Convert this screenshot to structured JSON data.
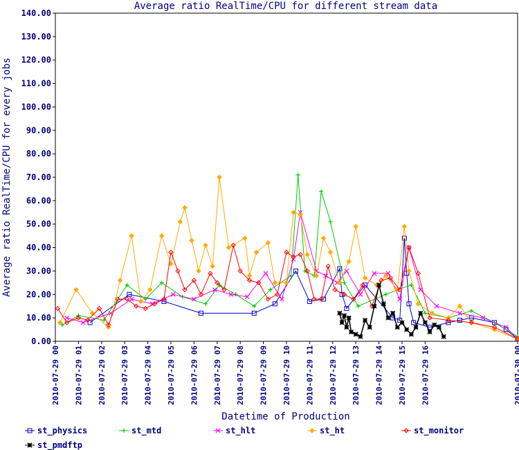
{
  "chart_data": {
    "type": "line",
    "title": "Average ratio RealTime/CPU for different stream data",
    "xlabel": "Datetime of Production",
    "ylabel": "Average ratio RealTime/CPU for every jobs",
    "ylim": [
      0,
      140
    ],
    "yticks": [
      "0.00",
      "10.00",
      "20.00",
      "30.00",
      "40.00",
      "50.00",
      "60.00",
      "70.00",
      "80.00",
      "90.00",
      "100.00",
      "110.00",
      "120.00",
      "130.00",
      "140.00"
    ],
    "xticks": [
      "2010-07-29 00",
      "2010-07-29 01",
      "2010-07-29 02",
      "2010-07-29 03",
      "2010-07-29 04",
      "2010-07-29 05",
      "2010-07-29 06",
      "2010-07-29 07",
      "2010-07-29 08",
      "2010-07-29 09",
      "2010-07-29 10",
      "2010-07-29 11",
      "2010-07-29 12",
      "2010-07-29 13",
      "2010-07-29 14",
      "2010-07-29 15",
      "2010-07-29 16",
      "2010-07-30 00"
    ],
    "x_unit": "hours since 2010-07-29 00",
    "grid": false,
    "legend_position": "bottom",
    "series": [
      {
        "name": "st_physics",
        "color": "#0000cc",
        "marker": "square",
        "x": [
          1.5,
          3.2,
          4.7,
          6.3,
          8.6,
          9.5,
          10.4,
          11.0,
          11.6,
          12.3,
          12.4,
          12.6,
          13.4,
          14.6,
          14.9,
          15.1,
          15.2,
          15.3,
          15.5,
          16.2,
          17.0,
          17.5,
          18.0,
          19.0,
          19.5,
          20.0
        ],
        "y": [
          8,
          20,
          17,
          12,
          12,
          16,
          30,
          17,
          18,
          31,
          20,
          14,
          24,
          10,
          9,
          44,
          29,
          16,
          8,
          6,
          8,
          9,
          10,
          8,
          5,
          1
        ]
      },
      {
        "name": "st_mtd",
        "color": "#00cc00",
        "marker": "plus",
        "x": [
          0.3,
          1.0,
          2.1,
          3.1,
          3.9,
          4.6,
          5.5,
          6.5,
          7.1,
          7.8,
          8.6,
          9.3,
          10.2,
          10.5,
          10.8,
          11.2,
          11.5,
          11.9,
          12.5,
          13.1,
          14.3,
          14.8,
          15.4,
          16.0,
          17.0,
          18.0,
          19.0,
          20.0
        ],
        "y": [
          7,
          11,
          9,
          24,
          18,
          25,
          19,
          16,
          24,
          20,
          15,
          22,
          28,
          71,
          30,
          28,
          64,
          51,
          25,
          15,
          20,
          22,
          24,
          12,
          10,
          13,
          8,
          2
        ]
      },
      {
        "name": "st_hlt",
        "color": "#ff00ff",
        "marker": "x",
        "x": [
          0.5,
          1.2,
          2.4,
          3.3,
          4.2,
          5.1,
          6.0,
          6.9,
          7.6,
          8.3,
          9.1,
          9.8,
          10.3,
          10.6,
          11.3,
          11.7,
          12.2,
          12.6,
          13.2,
          13.8,
          14.4,
          14.9,
          15.3,
          15.8,
          16.5,
          17.5,
          18.5,
          19.5,
          20.0
        ],
        "y": [
          10,
          8,
          12,
          18,
          16,
          20,
          18,
          22,
          20,
          19,
          29,
          18,
          35,
          55,
          30,
          28,
          25,
          30,
          20,
          29,
          29,
          18,
          40,
          22,
          15,
          12,
          10,
          6,
          1
        ]
      },
      {
        "name": "st_ht",
        "color": "#ffaa00",
        "marker": "diamond",
        "x": [
          0.2,
          0.9,
          1.6,
          2.3,
          2.8,
          3.3,
          3.7,
          4.1,
          4.6,
          5.0,
          5.4,
          5.6,
          5.9,
          6.2,
          6.5,
          6.8,
          7.1,
          7.5,
          8.2,
          8.4,
          8.7,
          9.2,
          9.5,
          10.0,
          10.3,
          10.6,
          10.9,
          11.3,
          11.6,
          11.9,
          12.3,
          12.7,
          13.0,
          13.4,
          13.9,
          14.3,
          14.8,
          15.1,
          15.3,
          15.7,
          16.3,
          17.0,
          17.5,
          18.0,
          19.0,
          20.0
        ],
        "y": [
          8,
          22,
          12,
          6,
          26,
          45,
          17,
          22,
          45,
          33,
          51,
          57,
          43,
          30,
          41,
          32,
          70,
          40,
          44,
          28,
          38,
          42,
          25,
          25,
          55,
          54,
          37,
          28,
          44,
          38,
          25,
          34,
          49,
          27,
          24,
          28,
          22,
          49,
          30,
          16,
          12,
          10,
          15,
          8,
          5,
          1
        ]
      },
      {
        "name": "st_monitor",
        "color": "#ff0000",
        "marker": "diamond-open",
        "x": [
          0.1,
          0.5,
          1.0,
          1.4,
          1.9,
          2.3,
          2.7,
          3.1,
          3.5,
          3.9,
          4.3,
          4.7,
          5.0,
          5.3,
          5.6,
          6.0,
          6.3,
          6.7,
          7.0,
          7.3,
          7.7,
          8.0,
          8.4,
          8.8,
          9.2,
          9.6,
          10.0,
          10.3,
          10.6,
          10.9,
          11.2,
          11.5,
          11.8,
          12.1,
          12.5,
          12.9,
          13.3,
          13.7,
          14.1,
          14.5,
          14.9,
          15.3,
          15.7,
          16.2,
          17.0,
          18.0,
          19.0,
          20.0
        ],
        "y": [
          14,
          8,
          10,
          9,
          14,
          7,
          18,
          18,
          15,
          14,
          16,
          18,
          38,
          30,
          22,
          26,
          20,
          29,
          25,
          22,
          41,
          30,
          26,
          25,
          18,
          20,
          38,
          36,
          37,
          30,
          18,
          18,
          32,
          22,
          20,
          18,
          24,
          15,
          26,
          27,
          22,
          40,
          29,
          10,
          9,
          8,
          6,
          1
        ]
      },
      {
        "name": "st_pmdftp",
        "color": "#000000",
        "marker": "star",
        "x": [
          12.3,
          12.4,
          12.5,
          12.6,
          12.7,
          12.8,
          13.0,
          13.2,
          13.4,
          13.6,
          13.8,
          14.0,
          14.2,
          14.4,
          14.6,
          14.8,
          15.0,
          15.2,
          15.4,
          15.6,
          15.8,
          16.0,
          16.2,
          16.4,
          16.6,
          16.8
        ],
        "y": [
          12,
          8,
          11,
          6,
          10,
          4,
          3,
          2,
          9,
          6,
          15,
          24,
          16,
          10,
          12,
          6,
          8,
          5,
          3,
          6,
          12,
          8,
          4,
          7,
          6,
          2
        ]
      }
    ]
  }
}
